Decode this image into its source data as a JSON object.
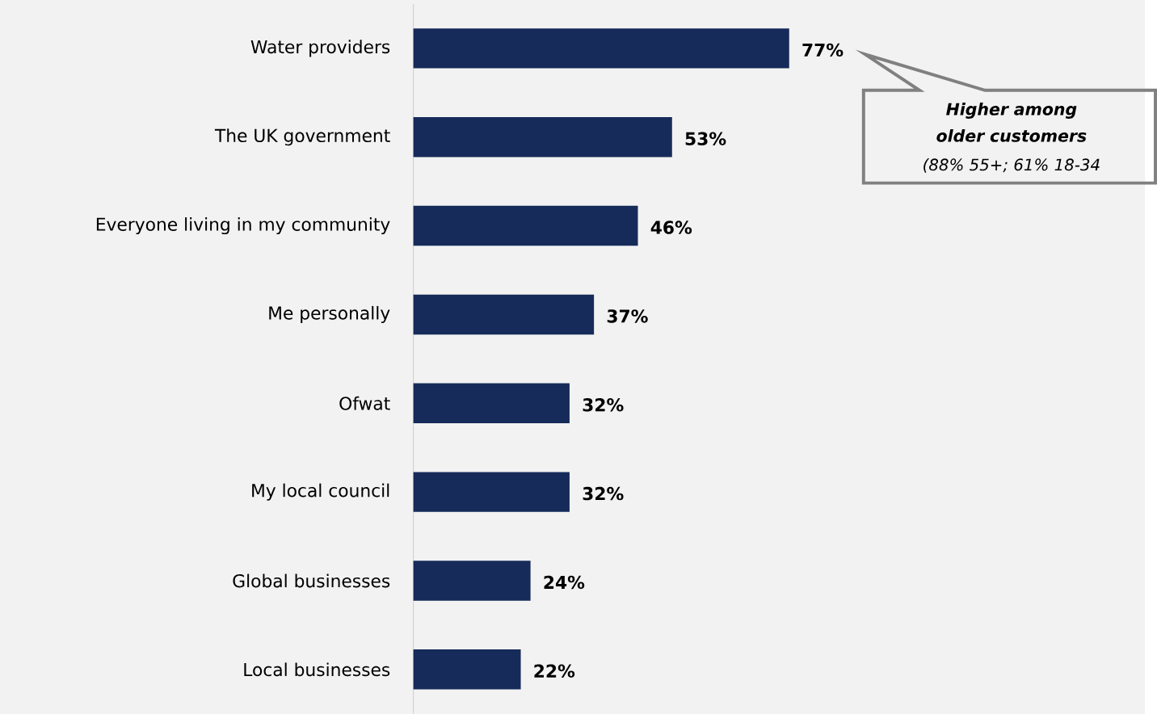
{
  "chart_data": {
    "type": "bar",
    "orientation": "horizontal",
    "categories": [
      "Water providers",
      "The UK government",
      "Everyone living in my community",
      "Me personally",
      "Ofwat",
      "My local council",
      "Global businesses",
      "Local businesses"
    ],
    "values": [
      77,
      53,
      46,
      37,
      32,
      32,
      24,
      22
    ],
    "value_labels": [
      "77%",
      "53%",
      "46%",
      "37%",
      "32%",
      "32%",
      "24%",
      "22%"
    ],
    "color": "#162b59",
    "annotations": [
      "Higher among older customers",
      "(88% 55+; 61% 18-34"
    ],
    "grid": false,
    "tick_labels": "y"
  }
}
